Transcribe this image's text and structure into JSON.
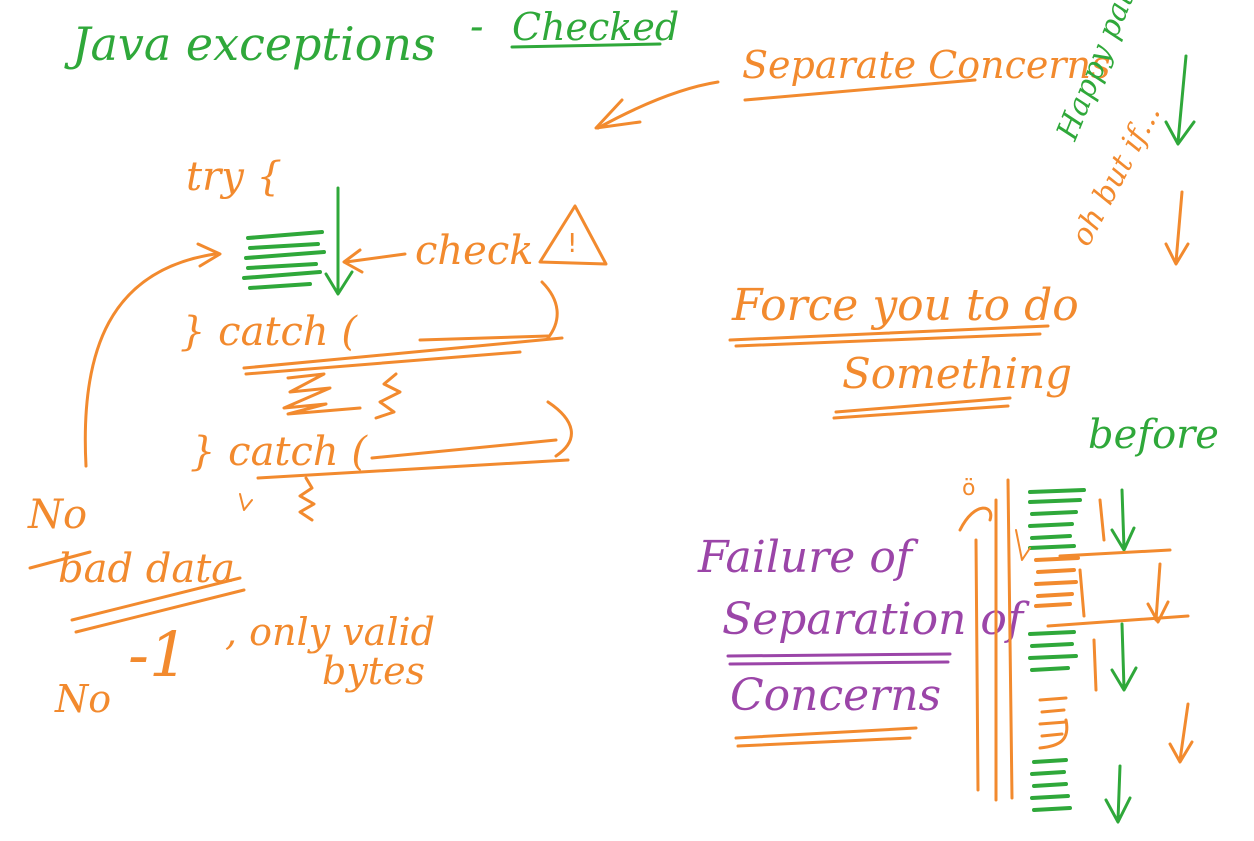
{
  "colors": {
    "green": "#2fa83a",
    "orange": "#f28a2e",
    "purple": "#9b45a8",
    "background": "#ffffff"
  },
  "heading": {
    "part1": "Java exceptions",
    "dash": "-",
    "part2": "Checked"
  },
  "separate_concerns": "Separate Concerns",
  "code_block": {
    "try": "try {",
    "check": "check",
    "catch1": "} catch (",
    "catch2": "} catch ("
  },
  "warning_icon": "!",
  "force_note": {
    "line1": "Force you to do",
    "line2": "Something"
  },
  "happy_path": "Happy path",
  "oh_but_if": "oh but if...",
  "before": "before",
  "no_bad_data": {
    "line1": "No",
    "line2": "bad data"
  },
  "no_minus_one": {
    "no": "No",
    "value": "-1",
    "rest_line1": ", only valid",
    "rest_line2": "bytes"
  },
  "failure_note": {
    "line1": "Failure of",
    "line2": "Separation of",
    "line3": "Concerns"
  },
  "face_glyph": "ö"
}
